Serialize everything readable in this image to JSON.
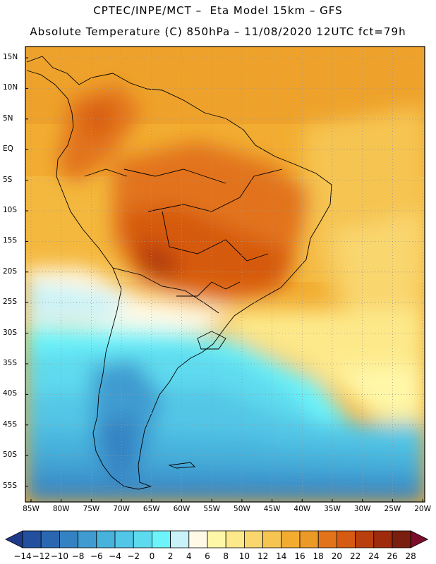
{
  "title_line1": "CPTEC/INPE/MCT –  Eta Model 15km – GFS",
  "title_line2": "Absolute Temperature (C) 850hPa – 11/08/2020 12UTC fct=79h",
  "lat_labels": [
    "15N",
    "10N",
    "5N",
    "EQ",
    "5S",
    "10S",
    "15S",
    "20S",
    "25S",
    "30S",
    "35S",
    "40S",
    "45S",
    "50S",
    "55S"
  ],
  "lon_labels": [
    "85W",
    "80W",
    "75W",
    "70W",
    "65W",
    "60W",
    "55W",
    "50W",
    "45W",
    "40W",
    "35W",
    "30W",
    "25W",
    "20W"
  ],
  "colorbar": {
    "labels": [
      "-14",
      "-12",
      "-10",
      "-8",
      "-6",
      "-4",
      "-2",
      "0",
      "2",
      "4",
      "6",
      "8",
      "10",
      "12",
      "14",
      "16",
      "18",
      "20",
      "22",
      "24",
      "26",
      "28"
    ],
    "colors": [
      "#1f3a8a",
      "#23509e",
      "#2a67b0",
      "#3482c2",
      "#3f9bd0",
      "#47b2dc",
      "#52c6e6",
      "#5edaee",
      "#6df4fb",
      "#c8f2f8",
      "#fff9e6",
      "#fff7a8",
      "#fde98a",
      "#f9d66e",
      "#f6c451",
      "#f2ad31",
      "#ec9a27",
      "#e2731b",
      "#d65a11",
      "#b9400e",
      "#9e2c0c",
      "#7a1e10",
      "#7a0d2a"
    ]
  }
}
